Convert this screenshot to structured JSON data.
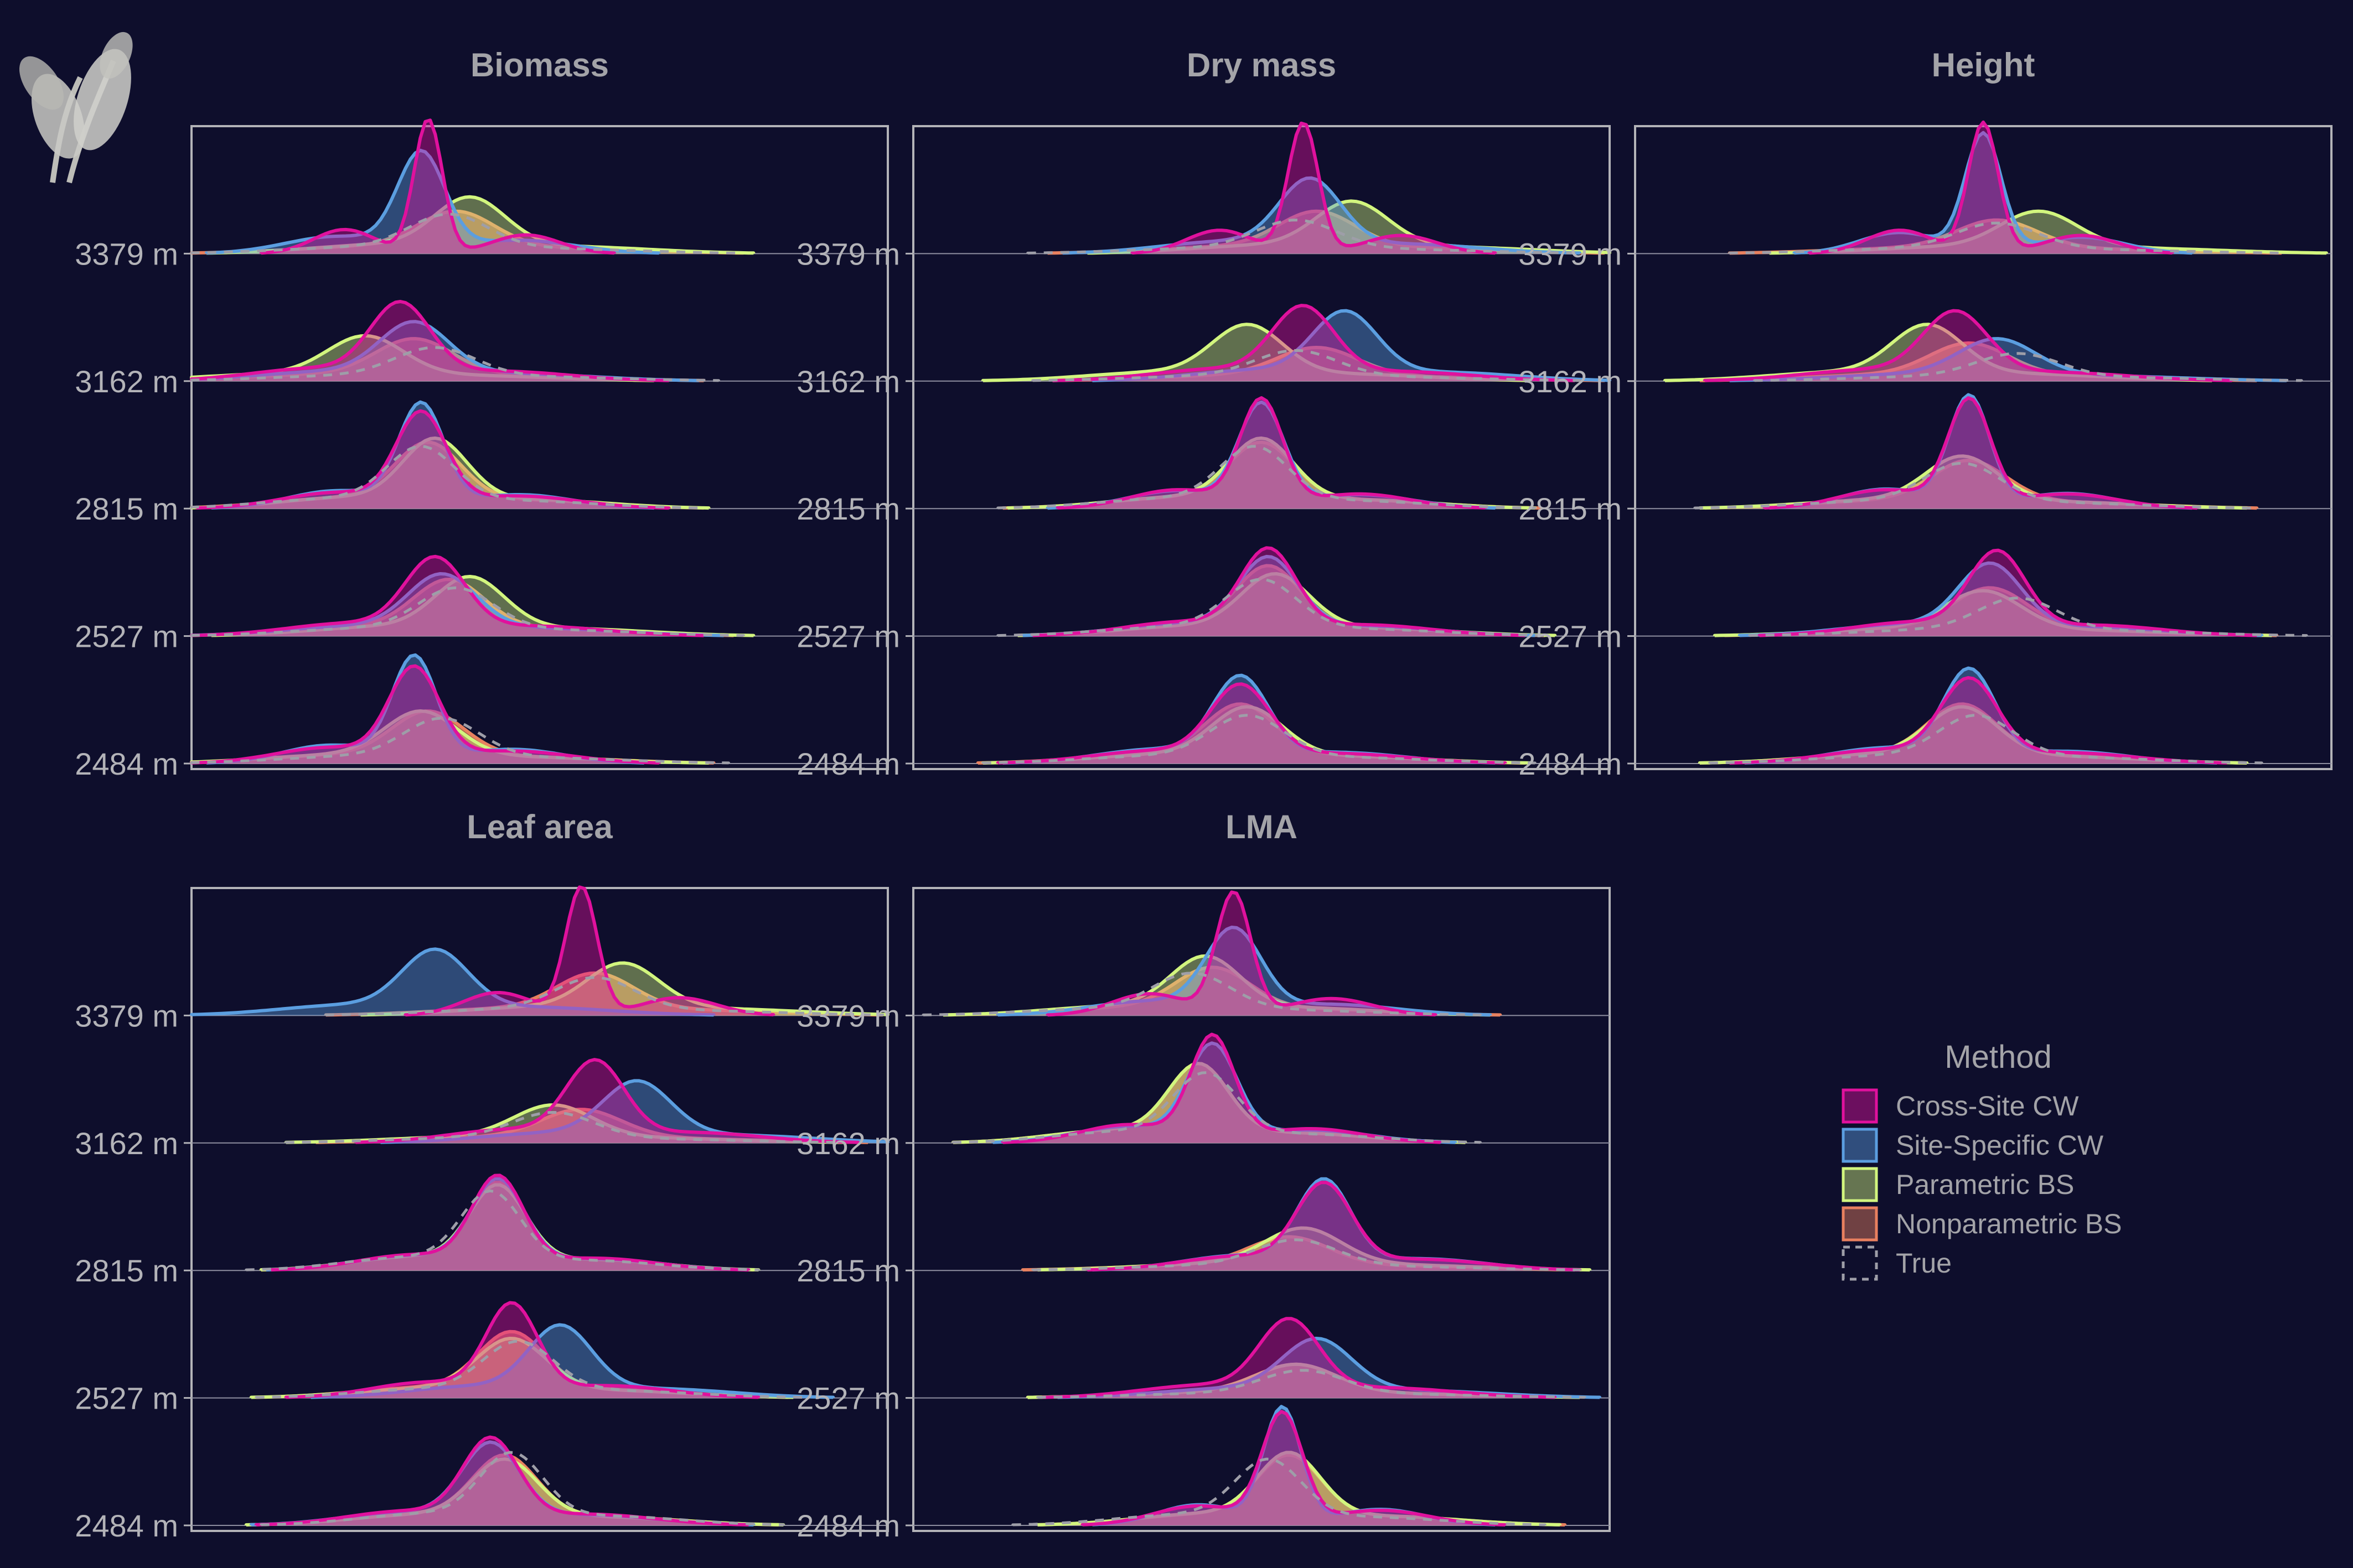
{
  "chart_data": {
    "type": "area",
    "subtype": "ridgeline-density",
    "facets": [
      "Biomass",
      "Dry mass",
      "Height",
      "Leaf area",
      "LMA"
    ],
    "y_categories": [
      "2484 m",
      "2527 m",
      "2815 m",
      "3162 m",
      "3379 m"
    ],
    "legend": {
      "title": "Method",
      "placement": "right",
      "entries": [
        {
          "label": "Cross-Site CW",
          "color": "#e0119d"
        },
        {
          "label": "Site-Specific CW",
          "color": "#5b9ee0"
        },
        {
          "label": "Parametric BS",
          "color": "#d2f57e"
        },
        {
          "label": "Nonparametric BS",
          "color": "#e8805f"
        },
        {
          "label": "True",
          "color": "#9e9ea8",
          "linetype": "dashed"
        }
      ]
    },
    "grid": true,
    "x_axis_labels": false,
    "panels": [
      {
        "facet": "Biomass",
        "ridges": [
          {
            "elevation": "3379 m",
            "peaks": {
              "Cross-Site CW": [
                0.34,
                1.05
              ],
              "Site-Specific CW": [
                0.33,
                0.75
              ],
              "Parametric BS": [
                0.4,
                0.38
              ],
              "Nonparametric BS": [
                0.38,
                0.28
              ],
              "True": [
                0.37,
                0.26
              ]
            }
          },
          {
            "elevation": "3162 m",
            "peaks": {
              "Cross-Site CW": [
                0.3,
                0.55
              ],
              "Site-Specific CW": [
                0.32,
                0.4
              ],
              "Parametric BS": [
                0.25,
                0.3
              ],
              "Nonparametric BS": [
                0.32,
                0.28
              ],
              "True": [
                0.35,
                0.22
              ]
            }
          },
          {
            "elevation": "2815 m",
            "peaks": {
              "Cross-Site CW": [
                0.33,
                0.7
              ],
              "Site-Specific CW": [
                0.33,
                0.78
              ],
              "Parametric BS": [
                0.35,
                0.48
              ],
              "Nonparametric BS": [
                0.34,
                0.45
              ],
              "True": [
                0.33,
                0.42
              ]
            }
          },
          {
            "elevation": "2527 m",
            "peaks": {
              "Cross-Site CW": [
                0.35,
                0.55
              ],
              "Site-Specific CW": [
                0.36,
                0.42
              ],
              "Parametric BS": [
                0.4,
                0.4
              ],
              "Nonparametric BS": [
                0.37,
                0.38
              ],
              "True": [
                0.38,
                0.32
              ]
            }
          },
          {
            "elevation": "2484 m",
            "peaks": {
              "Cross-Site CW": [
                0.32,
                0.7
              ],
              "Site-Specific CW": [
                0.32,
                0.8
              ],
              "Parametric BS": [
                0.33,
                0.35
              ],
              "Nonparametric BS": [
                0.34,
                0.35
              ],
              "True": [
                0.36,
                0.3
              ]
            }
          }
        ]
      },
      {
        "facet": "Dry mass",
        "ridges": [
          {
            "elevation": "3379 m",
            "peaks": {
              "Cross-Site CW": [
                0.56,
                1.02
              ],
              "Site-Specific CW": [
                0.57,
                0.52
              ],
              "Parametric BS": [
                0.63,
                0.35
              ],
              "Nonparametric BS": [
                0.58,
                0.28
              ],
              "True": [
                0.55,
                0.22
              ]
            }
          },
          {
            "elevation": "3162 m",
            "peaks": {
              "Cross-Site CW": [
                0.56,
                0.52
              ],
              "Site-Specific CW": [
                0.62,
                0.48
              ],
              "Parametric BS": [
                0.48,
                0.38
              ],
              "Nonparametric BS": [
                0.58,
                0.22
              ],
              "True": [
                0.55,
                0.2
              ]
            }
          },
          {
            "elevation": "2815 m",
            "peaks": {
              "Cross-Site CW": [
                0.5,
                0.82
              ],
              "Site-Specific CW": [
                0.5,
                0.78
              ],
              "Parametric BS": [
                0.5,
                0.48
              ],
              "Nonparametric BS": [
                0.5,
                0.45
              ],
              "True": [
                0.49,
                0.42
              ]
            }
          },
          {
            "elevation": "2527 m",
            "peaks": {
              "Cross-Site CW": [
                0.51,
                0.62
              ],
              "Site-Specific CW": [
                0.51,
                0.55
              ],
              "Parametric BS": [
                0.52,
                0.42
              ],
              "Nonparametric BS": [
                0.51,
                0.48
              ],
              "True": [
                0.5,
                0.38
              ]
            }
          },
          {
            "elevation": "2484 m",
            "peaks": {
              "Cross-Site CW": [
                0.47,
                0.55
              ],
              "Site-Specific CW": [
                0.47,
                0.62
              ],
              "Parametric BS": [
                0.48,
                0.38
              ],
              "Nonparametric BS": [
                0.47,
                0.4
              ],
              "True": [
                0.48,
                0.32
              ]
            }
          }
        ]
      },
      {
        "facet": "Height",
        "ridges": [
          {
            "elevation": "3379 m",
            "peaks": {
              "Cross-Site CW": [
                0.5,
                1.02
              ],
              "Site-Specific CW": [
                0.5,
                0.92
              ],
              "Parametric BS": [
                0.58,
                0.28
              ],
              "Nonparametric BS": [
                0.52,
                0.22
              ],
              "True": [
                0.52,
                0.2
              ]
            }
          },
          {
            "elevation": "3162 m",
            "peaks": {
              "Cross-Site CW": [
                0.46,
                0.48
              ],
              "Site-Specific CW": [
                0.52,
                0.28
              ],
              "Parametric BS": [
                0.42,
                0.38
              ],
              "Nonparametric BS": [
                0.48,
                0.25
              ],
              "True": [
                0.55,
                0.18
              ]
            }
          },
          {
            "elevation": "2815 m",
            "peaks": {
              "Cross-Site CW": [
                0.48,
                0.82
              ],
              "Site-Specific CW": [
                0.48,
                0.85
              ],
              "Parametric BS": [
                0.47,
                0.35
              ],
              "Nonparametric BS": [
                0.48,
                0.32
              ],
              "True": [
                0.47,
                0.3
              ]
            }
          },
          {
            "elevation": "2527 m",
            "peaks": {
              "Cross-Site CW": [
                0.52,
                0.6
              ],
              "Site-Specific CW": [
                0.51,
                0.5
              ],
              "Parametric BS": [
                0.5,
                0.3
              ],
              "Nonparametric BS": [
                0.51,
                0.32
              ],
              "True": [
                0.55,
                0.25
              ]
            }
          },
          {
            "elevation": "2484 m",
            "peaks": {
              "Cross-Site CW": [
                0.48,
                0.6
              ],
              "Site-Specific CW": [
                0.48,
                0.68
              ],
              "Parametric BS": [
                0.47,
                0.38
              ],
              "Nonparametric BS": [
                0.47,
                0.4
              ],
              "True": [
                0.49,
                0.32
              ]
            }
          }
        ]
      },
      {
        "facet": "Leaf area",
        "ridges": [
          {
            "elevation": "3379 m",
            "peaks": {
              "Cross-Site CW": [
                0.56,
                1.0
              ],
              "Site-Specific CW": [
                0.35,
                0.45
              ],
              "Parametric BS": [
                0.62,
                0.35
              ],
              "Nonparametric BS": [
                0.58,
                0.28
              ],
              "True": [
                0.58,
                0.25
              ]
            }
          },
          {
            "elevation": "3162 m",
            "peaks": {
              "Cross-Site CW": [
                0.58,
                0.58
              ],
              "Site-Specific CW": [
                0.64,
                0.42
              ],
              "Parametric BS": [
                0.52,
                0.25
              ],
              "Nonparametric BS": [
                0.56,
                0.22
              ],
              "True": [
                0.52,
                0.2
              ]
            }
          },
          {
            "elevation": "2815 m",
            "peaks": {
              "Cross-Site CW": [
                0.44,
                0.68
              ],
              "Site-Specific CW": [
                0.44,
                0.65
              ],
              "Parametric BS": [
                0.44,
                0.6
              ],
              "Nonparametric BS": [
                0.44,
                0.62
              ],
              "True": [
                0.43,
                0.55
              ]
            }
          },
          {
            "elevation": "2527 m",
            "peaks": {
              "Cross-Site CW": [
                0.46,
                0.68
              ],
              "Site-Specific CW": [
                0.53,
                0.5
              ],
              "Parametric BS": [
                0.46,
                0.4
              ],
              "Nonparametric BS": [
                0.46,
                0.45
              ],
              "True": [
                0.47,
                0.38
              ]
            }
          },
          {
            "elevation": "2484 m",
            "peaks": {
              "Cross-Site CW": [
                0.43,
                0.62
              ],
              "Site-Specific CW": [
                0.43,
                0.58
              ],
              "Parametric BS": [
                0.45,
                0.45
              ],
              "Nonparametric BS": [
                0.45,
                0.48
              ],
              "True": [
                0.46,
                0.5
              ]
            }
          }
        ]
      },
      {
        "facet": "LMA",
        "ridges": [
          {
            "elevation": "3379 m",
            "peaks": {
              "Cross-Site CW": [
                0.46,
                0.95
              ],
              "Site-Specific CW": [
                0.46,
                0.62
              ],
              "Parametric BS": [
                0.42,
                0.4
              ],
              "Nonparametric BS": [
                0.43,
                0.32
              ],
              "True": [
                0.4,
                0.28
              ]
            }
          },
          {
            "elevation": "3162 m",
            "peaks": {
              "Cross-Site CW": [
                0.43,
                0.8
              ],
              "Site-Specific CW": [
                0.43,
                0.72
              ],
              "Parametric BS": [
                0.41,
                0.55
              ],
              "Nonparametric BS": [
                0.41,
                0.55
              ],
              "True": [
                0.42,
                0.48
              ]
            }
          },
          {
            "elevation": "2815 m",
            "peaks": {
              "Cross-Site CW": [
                0.59,
                0.62
              ],
              "Site-Specific CW": [
                0.59,
                0.65
              ],
              "Parametric BS": [
                0.56,
                0.28
              ],
              "Nonparametric BS": [
                0.54,
                0.22
              ],
              "True": [
                0.55,
                0.2
              ]
            }
          },
          {
            "elevation": "2527 m",
            "peaks": {
              "Cross-Site CW": [
                0.54,
                0.55
              ],
              "Site-Specific CW": [
                0.58,
                0.4
              ],
              "Parametric BS": [
                0.55,
                0.22
              ],
              "Nonparametric BS": [
                0.55,
                0.22
              ],
              "True": [
                0.56,
                0.18
              ]
            }
          },
          {
            "elevation": "2484 m",
            "peaks": {
              "Cross-Site CW": [
                0.53,
                0.85
              ],
              "Site-Specific CW": [
                0.53,
                0.9
              ],
              "Parametric BS": [
                0.54,
                0.5
              ],
              "Nonparametric BS": [
                0.54,
                0.48
              ],
              "True": [
                0.51,
                0.45
              ]
            }
          }
        ]
      }
    ]
  }
}
